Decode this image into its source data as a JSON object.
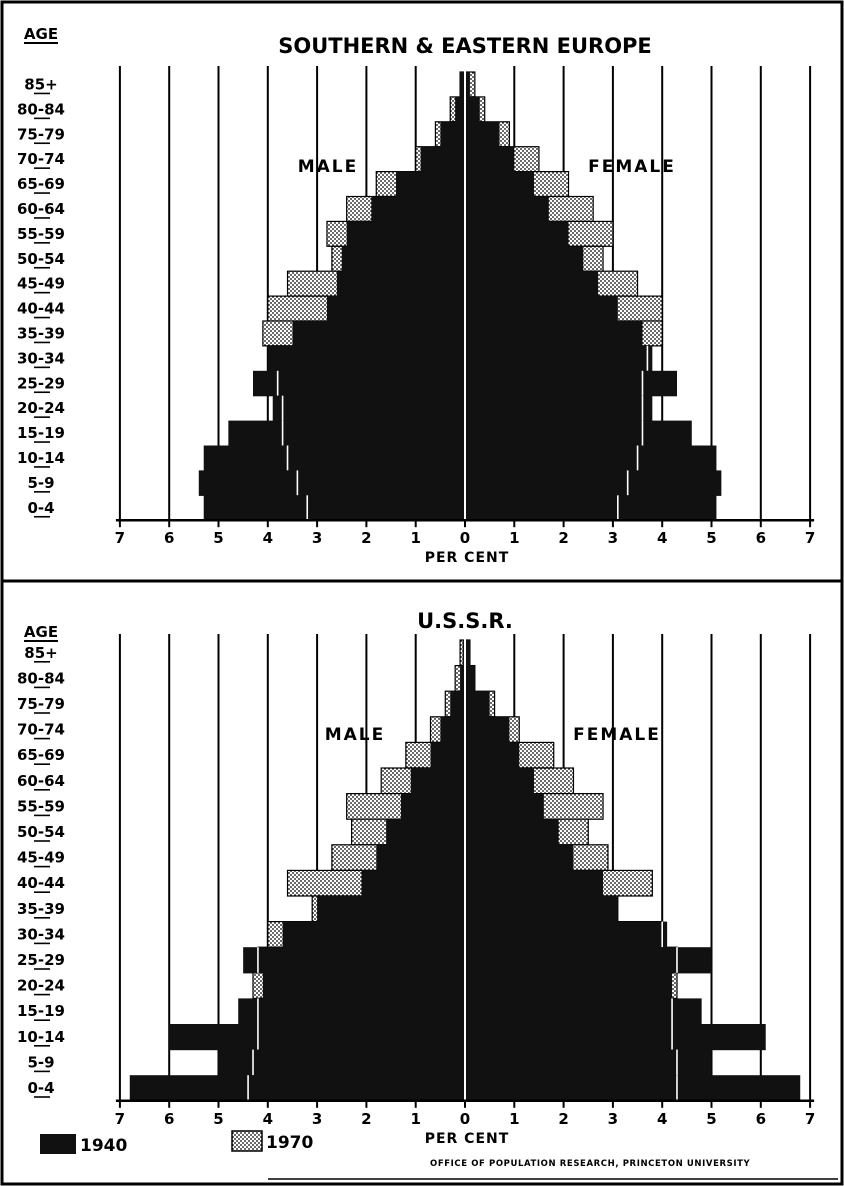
{
  "age_header": "AGE",
  "age_groups": [
    "85+",
    "80-84",
    "75-79",
    "70-74",
    "65-69",
    "60-64",
    "55-59",
    "50-54",
    "45-49",
    "40-44",
    "35-39",
    "30-34",
    "25-29",
    "20-24",
    "15-19",
    "10-14",
    "5-9",
    "0-4"
  ],
  "legend": [
    {
      "label": "1940",
      "pattern": "solid-black"
    },
    {
      "label": "1970",
      "pattern": "stippled"
    }
  ],
  "credit": "OFFICE OF POPULATION RESEARCH, PRINCETON UNIVERSITY",
  "colors": {
    "series_1940": "#111111",
    "series_1970": "#cfcfcf",
    "grid": "#000000"
  },
  "chart_data": [
    {
      "type": "bar",
      "orientation": "horizontal-population-pyramid",
      "title": "SOUTHERN & EASTERN EUROPE",
      "xlabel": "PER CENT",
      "ylabel": "AGE",
      "left_label": "MALE",
      "right_label": "FEMALE",
      "xlim": [
        -7,
        7
      ],
      "x_ticks": [
        "7",
        "6",
        "5",
        "4",
        "3",
        "2",
        "1",
        "0",
        "1",
        "2",
        "3",
        "4",
        "5",
        "6",
        "7"
      ],
      "grid": true,
      "categories": [
        "85+",
        "80-84",
        "75-79",
        "70-74",
        "65-69",
        "60-64",
        "55-59",
        "50-54",
        "45-49",
        "40-44",
        "35-39",
        "30-34",
        "25-29",
        "20-24",
        "15-19",
        "10-14",
        "5-9",
        "0-4"
      ],
      "series": [
        {
          "name": "1940",
          "sex": "MALE",
          "values": [
            0.1,
            0.2,
            0.5,
            0.9,
            1.4,
            1.9,
            2.4,
            2.5,
            2.6,
            2.8,
            3.5,
            4.0,
            4.3,
            3.9,
            4.8,
            5.3,
            5.4,
            5.3
          ]
        },
        {
          "name": "1970",
          "sex": "MALE",
          "values": [
            0.1,
            0.3,
            0.6,
            1.0,
            1.8,
            2.4,
            2.8,
            2.7,
            3.6,
            4.0,
            4.1,
            4.0,
            3.8,
            3.7,
            3.7,
            3.6,
            3.4,
            3.2
          ]
        },
        {
          "name": "1940",
          "sex": "FEMALE",
          "values": [
            0.1,
            0.3,
            0.7,
            1.0,
            1.4,
            1.7,
            2.1,
            2.4,
            2.7,
            3.1,
            3.6,
            3.8,
            4.3,
            3.8,
            4.6,
            5.1,
            5.2,
            5.1
          ]
        },
        {
          "name": "1970",
          "sex": "FEMALE",
          "values": [
            0.2,
            0.4,
            0.9,
            1.5,
            2.1,
            2.6,
            3.0,
            2.8,
            3.5,
            4.0,
            4.0,
            3.7,
            3.6,
            3.6,
            3.6,
            3.5,
            3.3,
            3.1
          ]
        }
      ]
    },
    {
      "type": "bar",
      "orientation": "horizontal-population-pyramid",
      "title": "U.S.S.R.",
      "xlabel": "PER CENT",
      "ylabel": "AGE",
      "left_label": "MALE",
      "right_label": "FEMALE",
      "xlim": [
        -7,
        7
      ],
      "x_ticks": [
        "7",
        "6",
        "5",
        "4",
        "3",
        "2",
        "1",
        "0",
        "1",
        "2",
        "3",
        "4",
        "5",
        "6",
        "7"
      ],
      "grid": true,
      "categories": [
        "85+",
        "80-84",
        "75-79",
        "70-74",
        "65-69",
        "60-64",
        "55-59",
        "50-54",
        "45-49",
        "40-44",
        "35-39",
        "30-34",
        "25-29",
        "20-24",
        "15-19",
        "10-14",
        "5-9",
        "0-4"
      ],
      "series": [
        {
          "name": "1940",
          "sex": "MALE",
          "values": [
            0.05,
            0.1,
            0.3,
            0.5,
            0.7,
            1.1,
            1.3,
            1.6,
            1.8,
            2.1,
            3.0,
            3.7,
            4.5,
            4.1,
            4.6,
            6.0,
            5.0,
            6.8
          ]
        },
        {
          "name": "1970",
          "sex": "MALE",
          "values": [
            0.1,
            0.2,
            0.4,
            0.7,
            1.2,
            1.7,
            2.4,
            2.3,
            2.7,
            3.6,
            3.1,
            4.0,
            4.2,
            4.3,
            4.2,
            4.2,
            4.3,
            4.4
          ]
        },
        {
          "name": "1940",
          "sex": "FEMALE",
          "values": [
            0.1,
            0.2,
            0.5,
            0.9,
            1.1,
            1.4,
            1.6,
            1.9,
            2.2,
            2.8,
            3.1,
            4.1,
            5.0,
            4.2,
            4.8,
            6.1,
            5.0,
            6.8
          ]
        },
        {
          "name": "1970",
          "sex": "FEMALE",
          "values": [
            0.1,
            0.2,
            0.6,
            1.1,
            1.8,
            2.2,
            2.8,
            2.5,
            2.9,
            3.8,
            3.1,
            4.0,
            4.3,
            4.3,
            4.2,
            4.2,
            4.3,
            4.3
          ]
        }
      ]
    }
  ]
}
